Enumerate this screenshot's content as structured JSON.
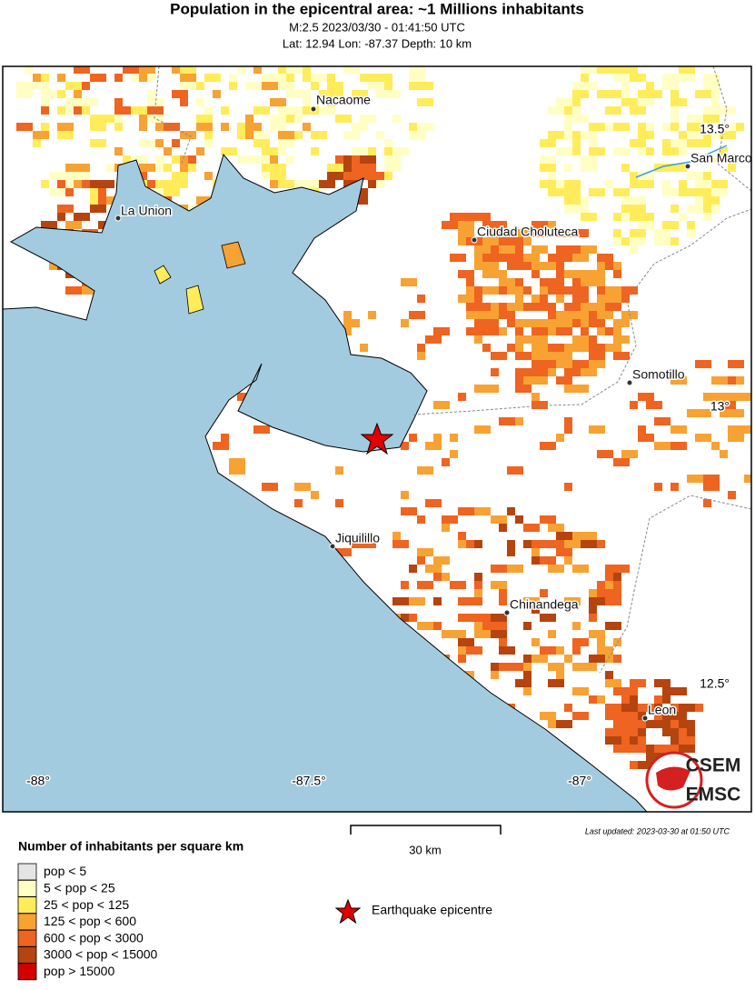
{
  "header": {
    "title": "Population in the epicentral area: ~1 Millions inhabitants",
    "line1": "M:2.5 2023/03/30 - 01:41:50 UTC",
    "line2": "Lat: 12.94 Lon: -87.37 Depth: 10 km"
  },
  "map": {
    "cities": [
      "Nacaome",
      "San Marcos",
      "La Union",
      "Ciudad Choluteca",
      "Somotillo",
      "Jiquilillo",
      "Chinandega",
      "Leon"
    ],
    "lon_labels": [
      "-88°",
      "-87.5°",
      "-87°"
    ],
    "lat_labels": [
      "13.5°",
      "13°",
      "12.5°"
    ],
    "scale": "30 km",
    "updated": "Last updated: 2023-03-30 at 01:50 UTC",
    "logo": [
      "CSEM",
      "EMSC"
    ]
  },
  "legend": {
    "title": "Number of inhabitants per square km",
    "items": [
      {
        "label": "pop < 5",
        "color": "#e4e4e4"
      },
      {
        "label": "5 < pop < 25",
        "color": "#ffffc4"
      },
      {
        "label": "25 < pop < 125",
        "color": "#ffec5a"
      },
      {
        "label": "125 < pop < 600",
        "color": "#f7a233"
      },
      {
        "label": "600 < pop < 3000",
        "color": "#ee6420"
      },
      {
        "label": "3000 < pop < 15000",
        "color": "#b5440f"
      },
      {
        "label": "pop > 15000",
        "color": "#d40000"
      }
    ],
    "epicentre": "Earthquake epicentre"
  }
}
